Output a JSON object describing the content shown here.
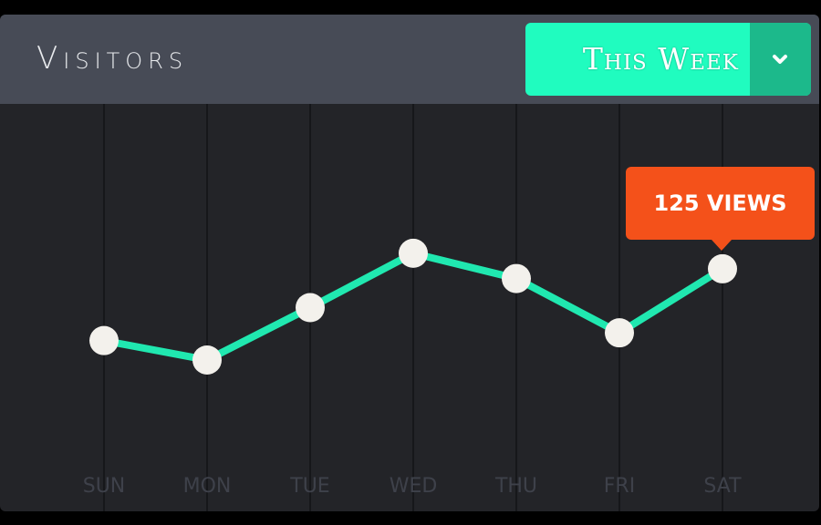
{
  "header": {
    "title": "Visitors",
    "period_selector": {
      "selected": "This Week",
      "icon": "chevron-down-icon"
    }
  },
  "tooltip": {
    "label": "125 VIEWS"
  },
  "colors": {
    "background": "#232428",
    "header": "#474b56",
    "accent": "#20fcbf",
    "accent_dark": "#1cb98b",
    "line": "#20e8b0",
    "point": "#f3f1ec",
    "tooltip": "#f4511a",
    "gridline": "#16171a",
    "axis_label": "#3e414a"
  },
  "chart_data": {
    "type": "line",
    "categories": [
      "SUN",
      "MON",
      "TUE",
      "WED",
      "THU",
      "FRI",
      "SAT"
    ],
    "series": [
      {
        "values": [
          88,
          78,
          105,
          133,
          120,
          92,
          125
        ]
      }
    ],
    "highlight": {
      "category": "SAT",
      "value": 125
    },
    "ylim": [
      0,
      210
    ],
    "grid": "vertical",
    "legend": "none"
  }
}
